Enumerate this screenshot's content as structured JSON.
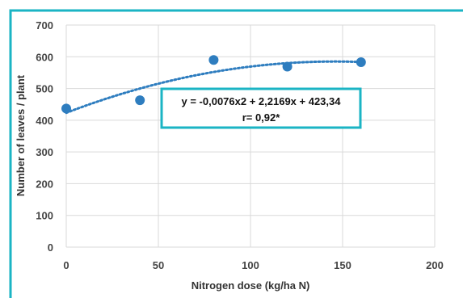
{
  "colors": {
    "frame": "#1bb4c4",
    "marker": "#2e7dbf",
    "trendline": "#2e7dbf",
    "grid": "#d9d9d9",
    "equation_box": "#1bb4c4"
  },
  "chart_data": {
    "type": "scatter",
    "title": "",
    "xlabel": "Nitrogen dose (kg/ha N)",
    "ylabel": "Number of leaves / plant",
    "xlim": [
      0,
      200
    ],
    "ylim": [
      0,
      700
    ],
    "xticks": [
      0,
      50,
      100,
      150,
      200
    ],
    "yticks": [
      0,
      100,
      200,
      300,
      400,
      500,
      600,
      700
    ],
    "grid": true,
    "series": [
      {
        "x": [
          0,
          40,
          80,
          120,
          160
        ],
        "y": [
          437,
          463,
          590,
          569,
          583
        ]
      }
    ],
    "trendline": {
      "type": "polynomial",
      "coefficients": [
        -0.0076,
        2.2169,
        423.34
      ],
      "x_range": [
        0,
        160
      ]
    },
    "annotation": {
      "equation": "y = -0,0076x2 + 2,2169x + 423,34",
      "r": "r= 0,92*"
    }
  }
}
